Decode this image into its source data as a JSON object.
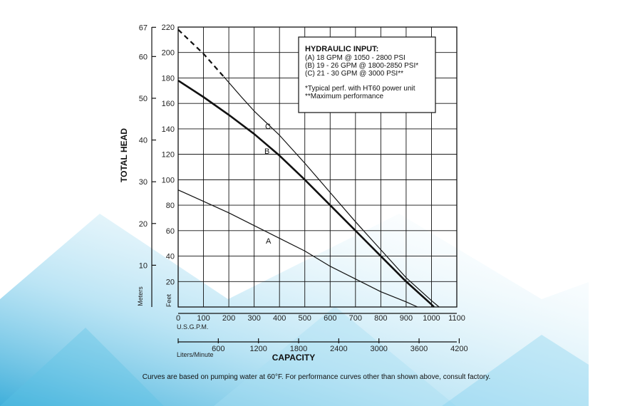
{
  "chart_data": {
    "type": "line",
    "xlabel": "CAPACITY",
    "ylabel": "TOTAL HEAD",
    "x_unit_primary": "U.S.G.P.M.",
    "x_unit_secondary": "Liters/Minute",
    "y_unit_feet": "Feet",
    "y_unit_meters": "Meters",
    "xlim": [
      0,
      1100
    ],
    "ylim": [
      0,
      220
    ],
    "x_ticks": [
      "0",
      "100",
      "200",
      "300",
      "400",
      "500",
      "600",
      "700",
      "800",
      "900",
      "1000",
      "1100"
    ],
    "y_ticks_feet": [
      "20",
      "40",
      "60",
      "80",
      "100",
      "120",
      "140",
      "160",
      "180",
      "200",
      "220"
    ],
    "meters_ticks": [
      "10",
      "20",
      "30",
      "40",
      "50",
      "60",
      "67"
    ],
    "liters_ticks": [
      "600",
      "1200",
      "1800",
      "2400",
      "3000",
      "3600",
      "4200"
    ],
    "grid": true,
    "series": [
      {
        "name": "A",
        "x": [
          0,
          100,
          200,
          300,
          400,
          500,
          600,
          700,
          800,
          900,
          945
        ],
        "y": [
          92,
          83,
          74,
          64,
          54,
          44,
          32,
          22,
          12,
          4,
          0
        ]
      },
      {
        "name": "B",
        "x": [
          0,
          100,
          200,
          300,
          400,
          500,
          600,
          700,
          800,
          900,
          1000,
          1010
        ],
        "y": [
          178,
          165,
          151,
          136,
          119,
          100,
          80,
          60,
          40,
          20,
          2,
          0
        ]
      },
      {
        "name": "C",
        "x": [
          0,
          100,
          180,
          250,
          300,
          400,
          500,
          600,
          700,
          800,
          900,
          1000,
          1030
        ],
        "y": [
          218,
          199,
          181,
          165,
          154,
          135,
          113,
          90,
          67,
          45,
          23,
          5,
          0
        ],
        "dashed_until_x": 220
      }
    ],
    "legend": {
      "title": "HYDRAULIC INPUT:",
      "lines": [
        "(A) 18 GPM @ 1050 - 2800 PSI",
        "(B) 19 - 26 GPM @ 1800-2850 PSI*",
        "(C) 21 - 30 GPM @ 3000 PSI**"
      ],
      "notes": [
        "*Typical perf. with HT60 power unit",
        "**Maximum performance"
      ],
      "placement": "top-right"
    },
    "footnote": "Curves are based on pumping water at 60°F. For performance curves other than shown above, consult factory."
  },
  "colors": {
    "line": "#111111",
    "grid": "#111111",
    "bg_accent": "#49b6de"
  }
}
